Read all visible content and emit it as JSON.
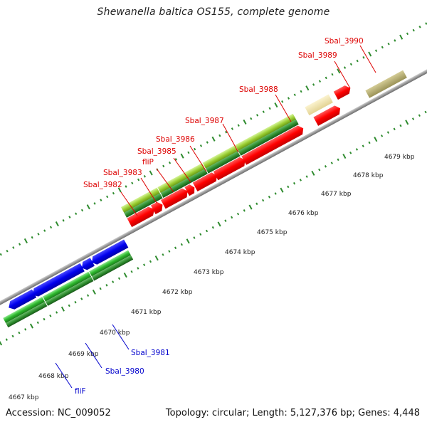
{
  "title": "Shewanella baltica OS155, complete genome",
  "footer": {
    "accession": "Accession: NC_009052",
    "summary": "Topology: circular; Length: 5,127,376 bp; Genes: 4,448"
  },
  "colors": {
    "backbone": "#9a9a9a",
    "tick_green": "#2e8b2e",
    "gene_red": "#ff0000",
    "gene_blue": "#0000ee",
    "gene_lime": "#9acd32",
    "gene_green": "#2db82d",
    "gene_darkgreen": "#2f8f2f",
    "gene_khaki": "#efe3a8",
    "gene_olive": "#b5ad70",
    "label_red": "#dd0000",
    "label_blue": "#0000cc"
  },
  "kbp_labels": [
    "4667 kbp",
    "4668 kbp",
    "4669 kbp",
    "4670 kbp",
    "4671 kbp",
    "4672 kbp",
    "4673 kbp",
    "4674 kbp",
    "4675 kbp",
    "4676 kbp",
    "4677 kbp",
    "4678 kbp",
    "4679 kbp"
  ],
  "gene_labels_top": [
    "Sbal_3982",
    "Sbal_3983",
    "fliP",
    "Sbal_3985",
    "Sbal_3986",
    "Sbal_3987",
    "Sbal_3988",
    "Sbal_3989",
    "Sbal_3990"
  ],
  "gene_labels_bottom": [
    "fliF",
    "Sbal_3980",
    "Sbal_3981"
  ]
}
